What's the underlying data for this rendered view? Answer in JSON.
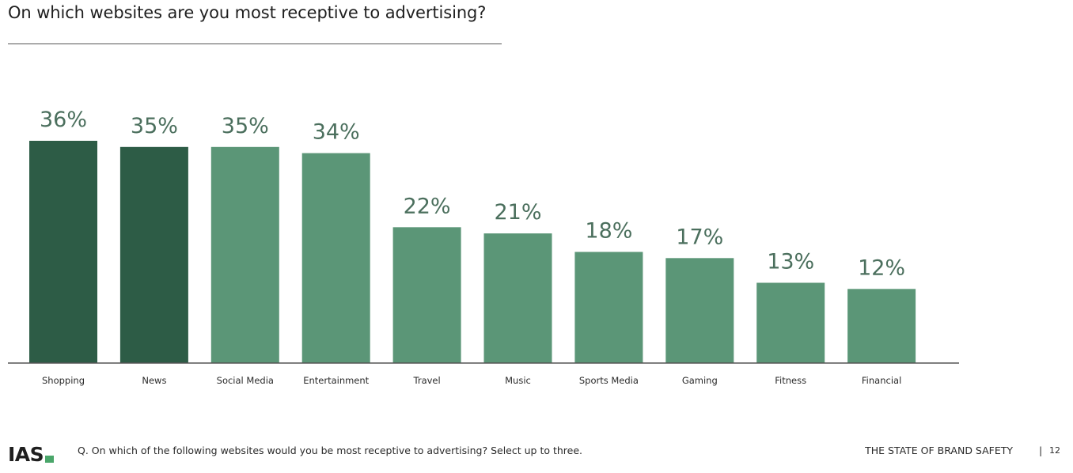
{
  "chart_data": {
    "type": "bar",
    "title": "On which websites are you most receptive to advertising?",
    "categories": [
      "Shopping",
      "News",
      "Social Media",
      "Entertainment",
      "Travel",
      "Music",
      "Sports Media",
      "Gaming",
      "Fitness",
      "Financial"
    ],
    "values": [
      36,
      35,
      35,
      34,
      22,
      21,
      18,
      17,
      13,
      12
    ],
    "value_labels": [
      "36%",
      "35%",
      "35%",
      "34%",
      "22%",
      "21%",
      "18%",
      "17%",
      "13%",
      "12%"
    ],
    "colors": [
      "#2d5c46",
      "#2d5c46",
      "#5b9677",
      "#5b9677",
      "#5b9677",
      "#5b9677",
      "#5b9677",
      "#5b9677",
      "#5b9677",
      "#5b9677"
    ],
    "label_color": "#4b6f5d",
    "ylim": [
      0,
      36
    ],
    "grid": false,
    "legend": "none"
  },
  "footer": {
    "logo_text": "IAS",
    "question": "Q. On which of the following websites would you be most receptive to advertising? Select up to three.",
    "report_name": "THE STATE OF BRAND SAFETY",
    "separator": "|",
    "page_number": "12"
  },
  "colors": {
    "brand_green": "#4aa66a",
    "baseline": "#555555"
  }
}
